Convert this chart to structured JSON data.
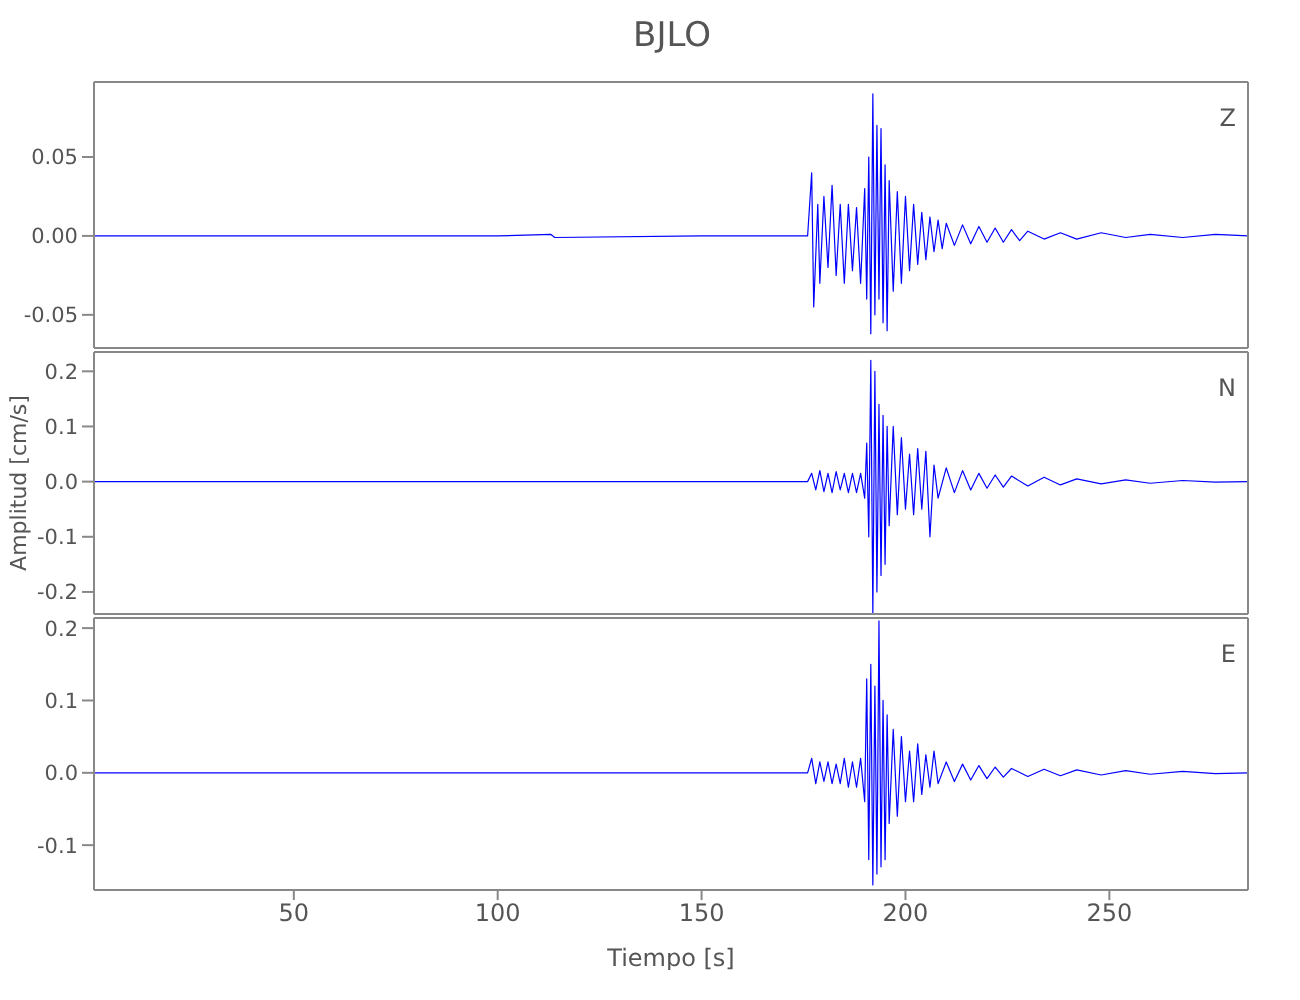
{
  "chart_data": [
    {
      "type": "line",
      "title": "BJLO",
      "annotations": [
        "Z"
      ],
      "tick_labels": "y",
      "xlim": [
        1,
        284
      ],
      "xticks": [
        50,
        100,
        150,
        200,
        250
      ],
      "ylim": [
        -0.071,
        0.0975
      ],
      "yticks": [
        {
          "value": 0.05,
          "label": "0.05"
        },
        {
          "value": 0,
          "label": "0.00"
        },
        {
          "value": -0.05,
          "label": "-0.05"
        }
      ],
      "series": [
        {
          "color": "#0000ff",
          "x": [
            1,
            50,
            100,
            113,
            114,
            150,
            176,
            177,
            177.5,
            178.5,
            179,
            180,
            181,
            182,
            183,
            184,
            185,
            186,
            187,
            188,
            189,
            190,
            190.5,
            191,
            191.5,
            192,
            192.5,
            193,
            193.5,
            194,
            194.5,
            195,
            195.5,
            196,
            197,
            198,
            199,
            200,
            201,
            202,
            203,
            204,
            205,
            206,
            207,
            208,
            209,
            210,
            212,
            214,
            216,
            218,
            220,
            222,
            224,
            226,
            228,
            230,
            234,
            238,
            242,
            248,
            254,
            260,
            268,
            276,
            284
          ],
          "values": [
            0,
            0,
            0,
            0.001,
            -0.001,
            0,
            0,
            0.04,
            -0.045,
            0.02,
            -0.03,
            0.025,
            -0.02,
            0.032,
            -0.025,
            0.02,
            -0.03,
            0.02,
            -0.022,
            0.018,
            -0.03,
            0.03,
            -0.04,
            0.05,
            -0.062,
            0.09,
            -0.05,
            0.07,
            -0.04,
            0.068,
            -0.055,
            0.045,
            -0.06,
            0.035,
            -0.035,
            0.028,
            -0.03,
            0.025,
            -0.022,
            0.02,
            -0.018,
            0.015,
            -0.015,
            0.012,
            -0.01,
            0.01,
            -0.008,
            0.008,
            -0.006,
            0.007,
            -0.005,
            0.006,
            -0.004,
            0.005,
            -0.004,
            0.004,
            -0.003,
            0.003,
            -0.002,
            0.002,
            -0.002,
            0.002,
            -0.001,
            0.001,
            -0.001,
            0.001,
            0
          ]
        }
      ]
    },
    {
      "type": "line",
      "ylabel": "Amplitud [cm/s]",
      "annotations": [
        "N"
      ],
      "tick_labels": "y",
      "xlim": [
        1,
        284
      ],
      "xticks": [
        50,
        100,
        150,
        200,
        250
      ],
      "ylim": [
        -0.24,
        0.235
      ],
      "yticks": [
        0.2,
        0.1,
        {
          "value": 0,
          "label": "0.0"
        },
        -0.1,
        -0.2
      ],
      "series": [
        {
          "color": "#0000ff",
          "x": [
            1,
            50,
            100,
            150,
            176,
            177,
            178,
            179,
            180,
            181,
            182,
            183,
            184,
            185,
            186,
            187,
            188,
            189,
            190,
            190.5,
            191,
            191.5,
            192,
            192.5,
            193,
            193.5,
            194,
            194.5,
            195,
            195.5,
            196,
            197,
            198,
            199,
            200,
            201,
            202,
            203,
            204,
            205,
            206,
            207,
            208,
            210,
            212,
            214,
            216,
            218,
            220,
            222,
            224,
            226,
            230,
            234,
            238,
            242,
            248,
            254,
            260,
            268,
            276,
            284
          ],
          "values": [
            0,
            0,
            0,
            0,
            0,
            0.015,
            -0.015,
            0.02,
            -0.018,
            0.015,
            -0.02,
            0.018,
            -0.015,
            0.015,
            -0.02,
            0.015,
            -0.02,
            0.015,
            -0.03,
            0.07,
            -0.1,
            0.22,
            -0.24,
            0.2,
            -0.2,
            0.14,
            -0.17,
            0.12,
            -0.15,
            0.1,
            -0.08,
            0.1,
            -0.06,
            0.08,
            -0.05,
            0.05,
            -0.06,
            0.06,
            -0.05,
            0.055,
            -0.1,
            0.03,
            -0.03,
            0.025,
            -0.02,
            0.02,
            -0.015,
            0.015,
            -0.012,
            0.012,
            -0.01,
            0.01,
            -0.008,
            0.008,
            -0.006,
            0.005,
            -0.004,
            0.003,
            -0.003,
            0.002,
            -0.001,
            0
          ]
        }
      ]
    },
    {
      "type": "line",
      "xlabel": "Tiempo [s]",
      "annotations": [
        "E"
      ],
      "xlim": [
        1,
        284
      ],
      "xticks": [
        50,
        100,
        150,
        200,
        250
      ],
      "ylim": [
        -0.162,
        0.214
      ],
      "yticks": [
        0.2,
        0.1,
        {
          "value": 0,
          "label": "0.0"
        },
        -0.1
      ],
      "series": [
        {
          "color": "#0000ff",
          "x": [
            1,
            50,
            100,
            150,
            176,
            177,
            178,
            179,
            180,
            181,
            182,
            183,
            184,
            185,
            186,
            187,
            188,
            189,
            190,
            190.5,
            191,
            191.5,
            192,
            192.5,
            193,
            193.5,
            194,
            194.5,
            195,
            195.5,
            196,
            197,
            198,
            199,
            200,
            201,
            202,
            203,
            204,
            205,
            206,
            207,
            208,
            210,
            212,
            214,
            216,
            218,
            220,
            222,
            224,
            226,
            230,
            234,
            238,
            242,
            248,
            254,
            260,
            268,
            276,
            284
          ],
          "values": [
            0,
            0,
            0,
            0,
            0,
            0.02,
            -0.015,
            0.015,
            -0.012,
            0.015,
            -0.015,
            0.012,
            -0.015,
            0.02,
            -0.02,
            0.015,
            -0.02,
            0.02,
            -0.04,
            0.13,
            -0.12,
            0.15,
            -0.155,
            0.12,
            -0.14,
            0.21,
            -0.13,
            0.1,
            -0.12,
            0.08,
            -0.07,
            0.06,
            -0.06,
            0.05,
            -0.04,
            0.03,
            -0.04,
            0.04,
            -0.03,
            0.025,
            -0.02,
            0.03,
            -0.015,
            0.015,
            -0.012,
            0.012,
            -0.01,
            0.01,
            -0.008,
            0.008,
            -0.006,
            0.006,
            -0.005,
            0.005,
            -0.004,
            0.004,
            -0.003,
            0.003,
            -0.002,
            0.002,
            -0.001,
            0
          ]
        }
      ]
    }
  ]
}
